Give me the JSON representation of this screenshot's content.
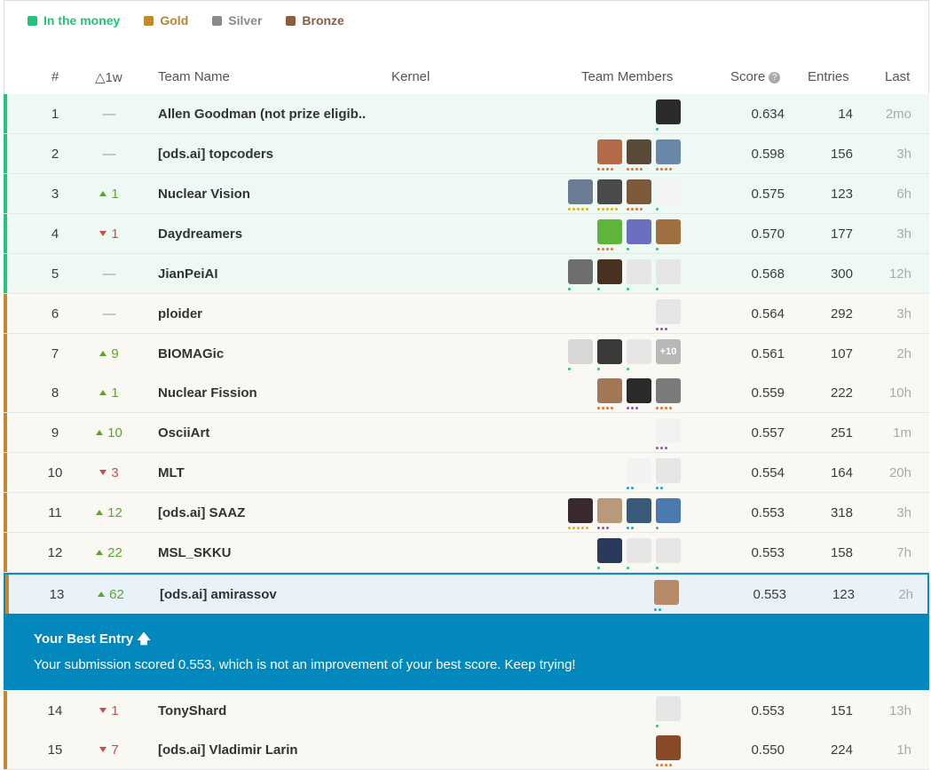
{
  "legend": [
    {
      "label": "In the money",
      "color": "#22c37a",
      "text_color": "#22c37a"
    },
    {
      "label": "Gold",
      "color": "#c4892b",
      "text_color": "#b8862a"
    },
    {
      "label": "Silver",
      "color": "#8a8a8a",
      "text_color": "#8a8a8a"
    },
    {
      "label": "Bronze",
      "color": "#8d5b3e",
      "text_color": "#8d5b3e"
    }
  ],
  "columns": {
    "rank": "#",
    "delta": "△1w",
    "team": "Team Name",
    "kernel": "Kernel",
    "members": "Team Members",
    "score": "Score",
    "entries": "Entries",
    "last": "Last"
  },
  "rows": [
    {
      "rank": "1",
      "delta": "—",
      "dir": "same",
      "team": "Allen Goodman (not prize eligib..",
      "score": "0.634",
      "entries": "14",
      "last": "2mo",
      "tier": "money",
      "members": [
        {
          "c": "#2b2b2b",
          "d": [
            "#21c27a"
          ]
        }
      ]
    },
    {
      "rank": "2",
      "delta": "—",
      "dir": "same",
      "team": "[ods.ai] topcoders",
      "score": "0.598",
      "entries": "156",
      "last": "3h",
      "tier": "money",
      "members": [
        {
          "c": "#b26a48",
          "d": [
            "#e8702a",
            "#e8702a",
            "#e8702a",
            "#e8702a"
          ]
        },
        {
          "c": "#5a4a3a",
          "d": [
            "#e8702a",
            "#e8702a",
            "#e8702a",
            "#e8702a"
          ]
        },
        {
          "c": "#6a86a8",
          "d": [
            "#e8702a",
            "#e8702a",
            "#e8702a",
            "#e8702a"
          ]
        }
      ]
    },
    {
      "rank": "3",
      "delta": "1",
      "dir": "up",
      "team": "Nuclear Vision",
      "score": "0.575",
      "entries": "123",
      "last": "6h",
      "tier": "money",
      "members": [
        {
          "c": "#6b7c94",
          "d": [
            "#e3b012",
            "#e3b012",
            "#e3b012",
            "#e3b012",
            "#e3b012"
          ]
        },
        {
          "c": "#4a4a4a",
          "d": [
            "#e3b012",
            "#e3b012",
            "#e3b012",
            "#e3b012",
            "#e3b012"
          ]
        },
        {
          "c": "#7a5a3a",
          "d": [
            "#e8702a",
            "#e8702a",
            "#e8702a",
            "#e8702a"
          ]
        },
        {
          "c": "#f4f4f4",
          "d": [
            "#21c27a"
          ]
        }
      ]
    },
    {
      "rank": "4",
      "delta": "1",
      "dir": "down",
      "team": "Daydreamers",
      "score": "0.570",
      "entries": "177",
      "last": "3h",
      "tier": "money",
      "members": [
        {
          "c": "#5fb53a",
          "d": [
            "#e8702a",
            "#e8702a",
            "#e8702a",
            "#e8702a"
          ]
        },
        {
          "c": "#6a70c0",
          "d": [
            "#21c27a"
          ]
        },
        {
          "c": "#a07040",
          "d": [
            "#21c27a"
          ]
        }
      ]
    },
    {
      "rank": "5",
      "delta": "—",
      "dir": "same",
      "team": "JianPeiAI",
      "score": "0.568",
      "entries": "300",
      "last": "12h",
      "tier": "money",
      "members": [
        {
          "c": "#6e6e6e",
          "d": [
            "#21c27a"
          ]
        },
        {
          "c": "#4a3020",
          "d": [
            "#21c27a"
          ]
        },
        {
          "c": "#e6e6e6",
          "d": [
            "#21c27a"
          ]
        },
        {
          "c": "#e6e6e6",
          "d": [
            "#21c27a"
          ]
        }
      ]
    },
    {
      "rank": "6",
      "delta": "—",
      "dir": "same",
      "team": "ploider",
      "score": "0.564",
      "entries": "292",
      "last": "3h",
      "tier": "gold",
      "members": [
        {
          "c": "#e6e6e6",
          "d": [
            "#9b4fb0",
            "#9b4fb0",
            "#9b4fb0"
          ]
        }
      ]
    },
    {
      "rank": "7",
      "delta": "9",
      "dir": "up",
      "team": "BIOMAGic",
      "score": "0.561",
      "entries": "107",
      "last": "2h",
      "tier": "gold",
      "members": [
        {
          "c": "#d8d8d8",
          "d": [
            "#21c27a"
          ]
        },
        {
          "c": "#3a3a3a",
          "d": [
            "#21c27a"
          ]
        },
        {
          "c": "#e6e6e6",
          "d": [
            "#21c27a"
          ]
        },
        {
          "c": "#b8b8b8",
          "d": [],
          "text": "+10"
        }
      ]
    },
    {
      "rank": "8",
      "delta": "1",
      "dir": "up",
      "team": "Nuclear Fission",
      "score": "0.559",
      "entries": "222",
      "last": "10h",
      "tier": "gold",
      "members": [
        {
          "c": "#a07858",
          "d": [
            "#e8702a",
            "#e8702a",
            "#e8702a",
            "#e8702a"
          ]
        },
        {
          "c": "#2a2a2a",
          "d": [
            "#9b4fb0",
            "#9b4fb0",
            "#9b4fb0"
          ]
        },
        {
          "c": "#7a7a7a",
          "d": [
            "#e8702a",
            "#e8702a",
            "#e8702a",
            "#e8702a"
          ]
        }
      ]
    },
    {
      "rank": "9",
      "delta": "10",
      "dir": "up",
      "team": "OsciiArt",
      "score": "0.557",
      "entries": "251",
      "last": "1m",
      "tier": "gold",
      "members": [
        {
          "c": "#f2f2f2",
          "d": [
            "#9b4fb0",
            "#9b4fb0",
            "#9b4fb0"
          ]
        }
      ]
    },
    {
      "rank": "10",
      "delta": "3",
      "dir": "down",
      "team": "MLT",
      "score": "0.554",
      "entries": "164",
      "last": "20h",
      "tier": "gold",
      "members": [
        {
          "c": "#f2f2f2",
          "d": [
            "#1aa3d6",
            "#1aa3d6"
          ]
        },
        {
          "c": "#e6e6e6",
          "d": [
            "#1aa3d6",
            "#1aa3d6"
          ]
        }
      ]
    },
    {
      "rank": "11",
      "delta": "12",
      "dir": "up",
      "team": "[ods.ai] SAAZ",
      "score": "0.553",
      "entries": "318",
      "last": "3h",
      "tier": "gold",
      "members": [
        {
          "c": "#3a2a30",
          "d": [
            "#e3b012",
            "#e3b012",
            "#e3b012",
            "#e3b012",
            "#e3b012"
          ]
        },
        {
          "c": "#b89a7a",
          "d": [
            "#9b4fb0",
            "#9b4fb0",
            "#9b4fb0"
          ]
        },
        {
          "c": "#3a5a7a",
          "d": [
            "#1aa3d6",
            "#1aa3d6"
          ]
        },
        {
          "c": "#4a7ab0",
          "d": [
            "#21c27a"
          ]
        }
      ]
    },
    {
      "rank": "12",
      "delta": "22",
      "dir": "up",
      "team": "MSL_SKKU",
      "score": "0.553",
      "entries": "158",
      "last": "7h",
      "tier": "gold",
      "members": [
        {
          "c": "#2a3a5a",
          "d": [
            "#21c27a"
          ]
        },
        {
          "c": "#e6e6e6",
          "d": [
            "#21c27a"
          ]
        },
        {
          "c": "#e6e6e6",
          "d": [
            "#21c27a"
          ]
        }
      ]
    },
    {
      "rank": "13",
      "delta": "62",
      "dir": "up",
      "team": "[ods.ai] amirassov",
      "score": "0.553",
      "entries": "123",
      "last": "2h",
      "tier": "current",
      "members": [
        {
          "c": "#b88a6a",
          "d": [
            "#1aa3d6",
            "#1aa3d6"
          ]
        }
      ]
    },
    {
      "rank": "14",
      "delta": "1",
      "dir": "down",
      "team": "TonyShard",
      "score": "0.553",
      "entries": "151",
      "last": "13h",
      "tier": "gold",
      "members": [
        {
          "c": "#e6e6e6",
          "d": [
            "#21c27a"
          ]
        }
      ]
    },
    {
      "rank": "15",
      "delta": "7",
      "dir": "down",
      "team": "[ods.ai] Vladimir Larin",
      "score": "0.550",
      "entries": "224",
      "last": "1h",
      "tier": "gold",
      "members": [
        {
          "c": "#8a4a2a",
          "d": [
            "#e8702a",
            "#e8702a",
            "#e8702a",
            "#e8702a"
          ]
        }
      ]
    }
  ],
  "banner": {
    "title": "Your Best Entry",
    "message": "Your submission scored 0.553, which is not an improvement of your best score. Keep trying!"
  },
  "colors": {
    "money": "#22c37a",
    "gold": "#c4892b",
    "current_border": "#0a8ec0",
    "banner_bg": "#0288bd"
  }
}
